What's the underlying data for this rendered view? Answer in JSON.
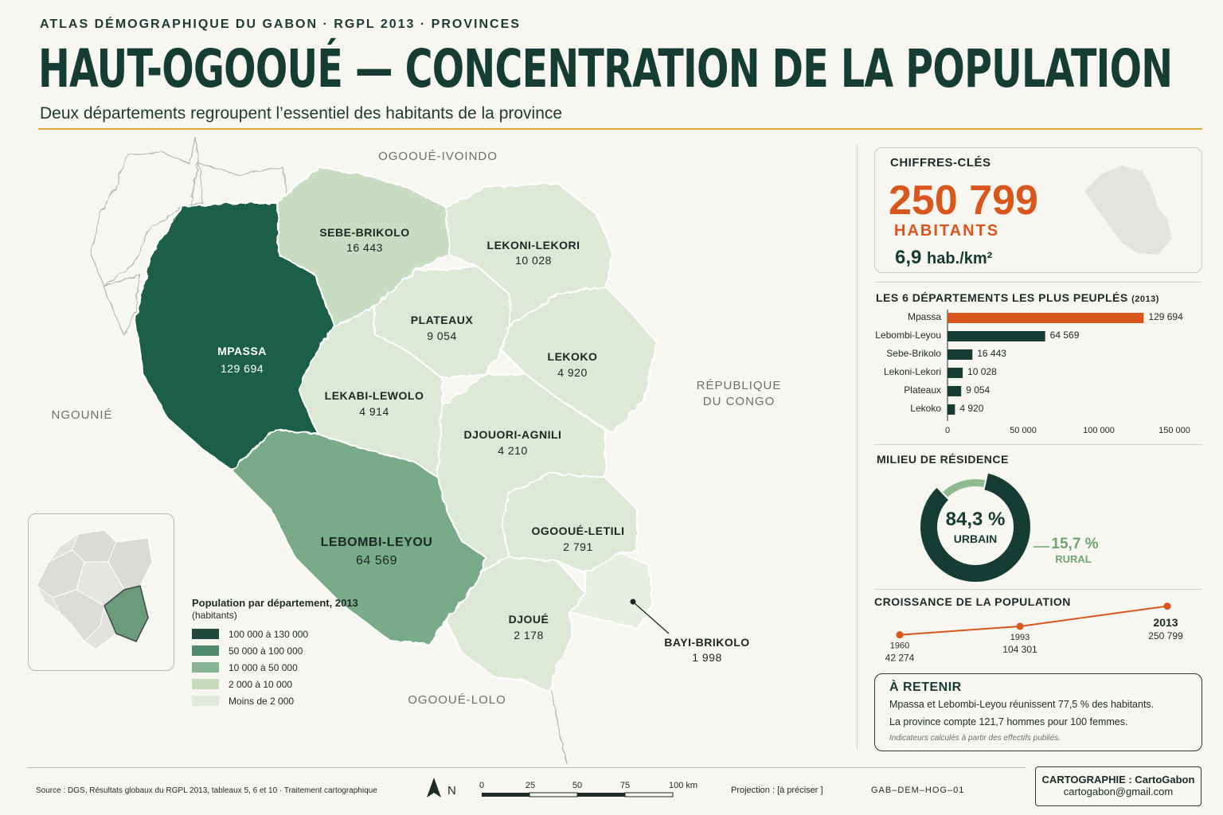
{
  "header": {
    "kicker": "ATLAS DÉMOGRAPHIQUE DU GABON · RGPL 2013 · PROVINCES",
    "title": "HAUT-OGOOUÉ — CONCENTRATION DE LA POPULATION",
    "subtitle": "Deux départements regroupent l’essentiel des habitants de la province"
  },
  "map": {
    "departments": [
      {
        "name": "MPASSA",
        "value": "129 694",
        "class": "100 000 à 130 000"
      },
      {
        "name": "LEBOMBI-LEYOU",
        "value": "64 569",
        "class": "50 000 à 100 000"
      },
      {
        "name": "SEBE-BRIKOLO",
        "value": "16 443",
        "class": "10 000 à 50 000"
      },
      {
        "name": "LEKONI-LEKORI",
        "value": "10 028",
        "class": "10 000 à 50 000"
      },
      {
        "name": "PLATEAUX",
        "value": "9 054",
        "class": "2 000 à 10 000"
      },
      {
        "name": "LEKOKO",
        "value": "4 920",
        "class": "2 000 à 10 000"
      },
      {
        "name": "LEKABI-LEWOLO",
        "value": "4 914",
        "class": "2 000 à 10 000"
      },
      {
        "name": "DJOUORI-AGNILI",
        "value": "4 210",
        "class": "2 000 à 10 000"
      },
      {
        "name": "OGOOUÉ-LETILI",
        "value": "2 791",
        "class": "2 000 à 10 000"
      },
      {
        "name": "DJOUÉ",
        "value": "2 178",
        "class": "2 000 à 10 000"
      },
      {
        "name": "BAYI-BRIKOLO",
        "value": "1 998",
        "class": "Moins de 2 000"
      }
    ],
    "neighbors": {
      "north": "OGOOUÉ-IVOINDO",
      "west": "NGOUNIÉ",
      "east_line1": "RÉPUBLIQUE",
      "east_line2": "DU CONGO",
      "south": "OGOOUÉ-LOLO"
    },
    "colors": {
      "c1": "#1d5e48",
      "c2": "#7aab88",
      "c3": "#c7dcc1",
      "c4": "#dde8d6",
      "c5": "#e7eee1"
    }
  },
  "legend": {
    "title": "Population par département, 2013",
    "subtitle": "(habitants)",
    "items": [
      {
        "label": "100 000 à 130 000",
        "color": "#1d4a3c"
      },
      {
        "label": "50 000 à 100 000",
        "color": "#4f8a6c"
      },
      {
        "label": "10 000 à  50 000",
        "color": "#86b493"
      },
      {
        "label": "2 000 à  10 000",
        "color": "#c4dab9"
      },
      {
        "label": "Moins de  2 000",
        "color": "#e0e9d7"
      }
    ]
  },
  "key_figures": {
    "title": "CHIFFRES-CLÉS",
    "population": "250 799",
    "population_unit": "HABITANTS",
    "density_value": "6,9",
    "density_unit": "hab./km²"
  },
  "chart_data": [
    {
      "type": "bar",
      "title": "LES 6 DÉPARTEMENTS LES PLUS PEUPLÉS",
      "title_suffix": "(2013)",
      "categories": [
        "Mpassa",
        "Lebombi-Leyou",
        "Sebe-Brikolo",
        "Lekoni-Lekori",
        "Plateaux",
        "Lekoko"
      ],
      "values": [
        129694,
        64569,
        16443,
        10028,
        9054,
        4920
      ],
      "value_labels": [
        "129 694",
        "64 569",
        "16 443",
        "10 028",
        "9 054",
        "4 920"
      ],
      "xlim": [
        0,
        150000
      ],
      "ticks": [
        "0",
        "50 000",
        "100 000",
        "150 000"
      ],
      "highlight_color": "#d9561c",
      "bar_color": "#163d33"
    },
    {
      "type": "pie",
      "title": "MILIEU DE RÉSIDENCE",
      "slices": [
        {
          "name": "URBAIN",
          "value": 84.3,
          "label": "84,3 %",
          "color": "#163d33"
        },
        {
          "name": "RURAL",
          "value": 15.7,
          "label": "15,7 %",
          "color": "#8dbb8f"
        }
      ]
    },
    {
      "type": "line",
      "title": "CROISSANCE DE LA POPULATION",
      "x": [
        1960,
        1993,
        2013
      ],
      "values": [
        42274,
        104301,
        250799
      ],
      "x_labels": [
        "1960",
        "1993",
        "2013"
      ],
      "value_labels": [
        "42 274",
        "104 301",
        "250 799"
      ],
      "color": "#d9561c"
    }
  ],
  "retain": {
    "title": "À RETENIR",
    "line1": "Mpassa et Lebombi-Leyou réunissent 77,5 % des habitants.",
    "line2": "La province compte 121,7 hommes pour 100 femmes.",
    "note": "Indicateurs calculés à partir des effectifs publiés."
  },
  "footer": {
    "source": "Source : DGS, Résultats globaux du RGPL 2013, tableaux 5, 6 et 10  ·  Traitement cartographique",
    "north_label": "N",
    "scale_ticks": [
      "0",
      "25",
      "50",
      "75",
      "100 km"
    ],
    "projection": "Projection : [à préciser ]",
    "code": "GAB–DEM–HOG–01",
    "credit_line1": "CARTOGRAPHIE : CartoGabon",
    "credit_line2": "cartogabon@gmail.com"
  }
}
